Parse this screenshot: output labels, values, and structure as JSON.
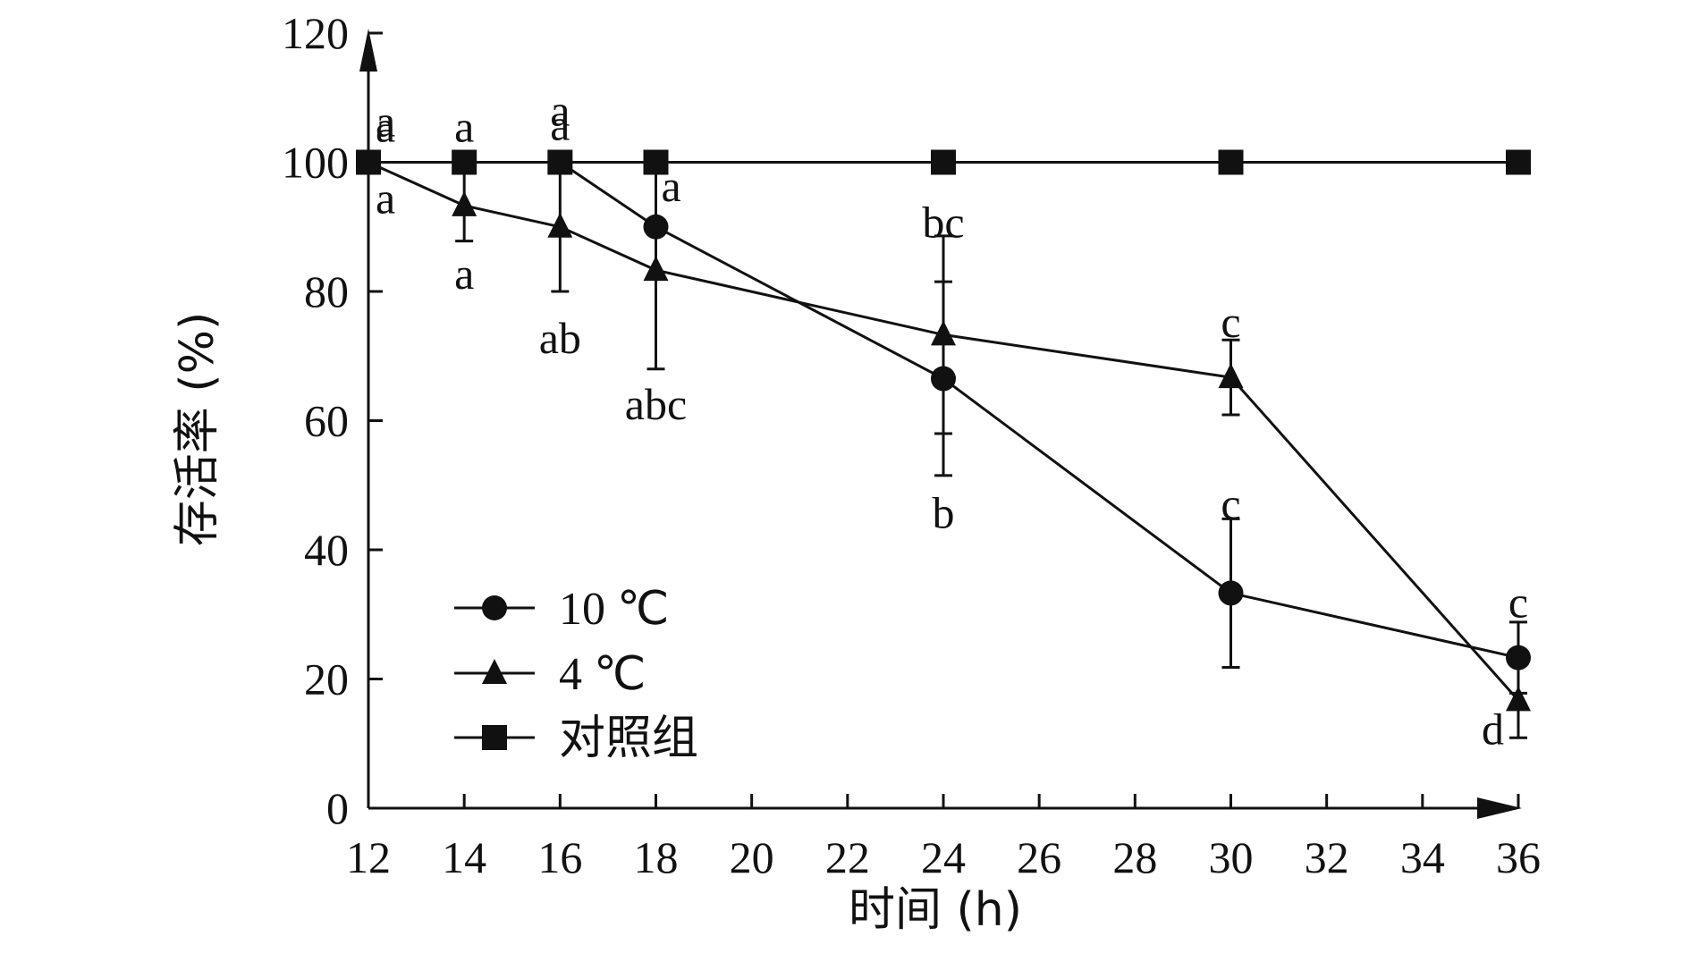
{
  "chart_data": {
    "type": "line",
    "title": "",
    "xlabel": "时间 (h)",
    "ylabel": "存活率 (%)",
    "xlim": [
      12,
      36
    ],
    "ylim": [
      0,
      120
    ],
    "x_ticks": [
      "12",
      "14",
      "16",
      "18",
      "20",
      "22",
      "24",
      "26",
      "28",
      "30",
      "32",
      "34",
      "36"
    ],
    "y_ticks": [
      "0",
      "20",
      "40",
      "60",
      "80",
      "100",
      "120"
    ],
    "grid": false,
    "legend_position": "bottom-left",
    "series": [
      {
        "name": "10 ℃",
        "marker": "circle",
        "color": "#111111",
        "points": [
          {
            "x": 12,
            "y": 100,
            "err": 0,
            "label": "a"
          },
          {
            "x": 16,
            "y": 100,
            "err": 0,
            "label": "a"
          },
          {
            "x": 18,
            "y": 90,
            "err": 0,
            "label": "a"
          },
          {
            "x": 24,
            "y": 66.5,
            "err": 15,
            "label": "b"
          },
          {
            "x": 30,
            "y": 33.3,
            "err": 11.5,
            "label": "c"
          },
          {
            "x": 36,
            "y": 23.3,
            "err": 5.5,
            "label": "c"
          }
        ]
      },
      {
        "name": "4 ℃",
        "marker": "triangle",
        "color": "#111111",
        "points": [
          {
            "x": 12,
            "y": 100,
            "err": 0,
            "label": "a"
          },
          {
            "x": 14,
            "y": 93.3,
            "err": 5.5,
            "label": "a"
          },
          {
            "x": 16,
            "y": 90,
            "err": 10,
            "label": "ab"
          },
          {
            "x": 18,
            "y": 83.3,
            "err": 15.3,
            "label": "abc"
          },
          {
            "x": 24,
            "y": 73.3,
            "err": 15.3,
            "label": "bc"
          },
          {
            "x": 30,
            "y": 66.7,
            "err": 5.8,
            "label": "c"
          },
          {
            "x": 36,
            "y": 16.7,
            "err": 5.8,
            "label": "d"
          }
        ]
      },
      {
        "name": "对照组",
        "marker": "square",
        "color": "#111111",
        "points": [
          {
            "x": 12,
            "y": 100,
            "err": 0,
            "label": "a"
          },
          {
            "x": 14,
            "y": 100,
            "err": 0,
            "label": "a"
          },
          {
            "x": 16,
            "y": 100,
            "err": 0,
            "label": "a"
          },
          {
            "x": 18,
            "y": 100,
            "err": 0,
            "label": ""
          },
          {
            "x": 24,
            "y": 100,
            "err": 0,
            "label": ""
          },
          {
            "x": 30,
            "y": 100,
            "err": 0,
            "label": ""
          },
          {
            "x": 36,
            "y": 100,
            "err": 0,
            "label": ""
          }
        ]
      }
    ]
  }
}
